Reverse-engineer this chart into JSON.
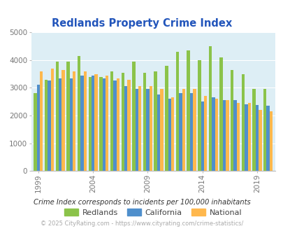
{
  "title": "Redlands Property Crime Index",
  "years": [
    1999,
    2000,
    2001,
    2002,
    2003,
    2004,
    2005,
    2006,
    2007,
    2008,
    2009,
    2010,
    2011,
    2012,
    2013,
    2014,
    2015,
    2016,
    2017,
    2018,
    2019,
    2020
  ],
  "redlands": [
    2800,
    3300,
    3950,
    3950,
    4150,
    3400,
    3400,
    3600,
    3550,
    3950,
    3550,
    3600,
    3800,
    4300,
    4350,
    4000,
    4500,
    4100,
    3650,
    3500,
    2950,
    2950
  ],
  "california": [
    3100,
    3250,
    3350,
    3350,
    3450,
    3450,
    3350,
    3250,
    3050,
    2950,
    2950,
    2750,
    2600,
    2800,
    2800,
    2500,
    2650,
    2550,
    2550,
    2400,
    2380,
    2350
  ],
  "national": [
    3600,
    3700,
    3650,
    3600,
    3600,
    3500,
    3450,
    3350,
    3300,
    3050,
    3050,
    2950,
    2650,
    2950,
    2950,
    2700,
    2600,
    2550,
    2450,
    2450,
    2200,
    2150
  ],
  "color_redlands": "#8bc34a",
  "color_california": "#4f8fcc",
  "color_national": "#ffb84d",
  "ylim": [
    0,
    5000
  ],
  "yticks": [
    0,
    1000,
    2000,
    3000,
    4000,
    5000
  ],
  "xtick_years": [
    1999,
    2004,
    2009,
    2014,
    2019
  ],
  "bg_color": "#ddeef5",
  "subtitle": "Crime Index corresponds to incidents per 100,000 inhabitants",
  "footer": "© 2025 CityRating.com - https://www.cityrating.com/crime-statistics/",
  "bar_width": 0.28,
  "grid_color": "#ffffff",
  "title_color": "#2255bb",
  "tick_color": "#777777"
}
